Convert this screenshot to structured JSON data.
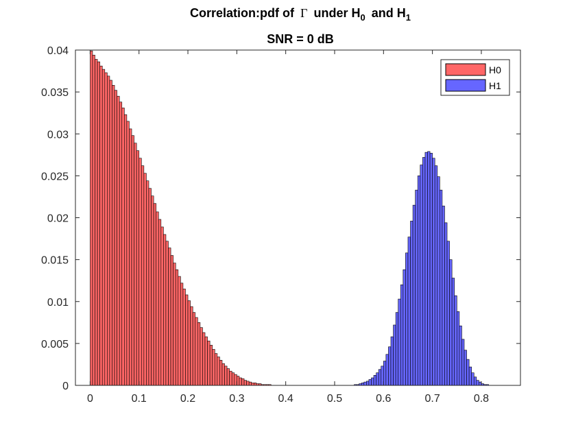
{
  "chart_data": {
    "type": "bar",
    "title": {
      "prefix": "Correlation:pdf of",
      "symbol": "Γ",
      "under": "under H",
      "sub0": "0",
      "and": "and H",
      "sub1": "1"
    },
    "subtitle": "SNR = 0 dB",
    "xlabel": "",
    "ylabel": "",
    "xlim": [
      -0.03,
      0.88
    ],
    "ylim": [
      0,
      0.04
    ],
    "xticks": [
      "0",
      "0.1",
      "0.2",
      "0.3",
      "0.4",
      "0.5",
      "0.6",
      "0.7",
      "0.8"
    ],
    "yticks": [
      "0",
      "0.005",
      "0.01",
      "0.015",
      "0.02",
      "0.025",
      "0.03",
      "0.035",
      "0.04"
    ],
    "grid": false,
    "legend_position": "top-right",
    "bin_width": 0.005,
    "series": [
      {
        "name": "H0",
        "color": "#ff6666",
        "x_start": 0.0,
        "values": [
          0.0399,
          0.0394,
          0.0389,
          0.0386,
          0.0381,
          0.0377,
          0.0373,
          0.0369,
          0.0364,
          0.0358,
          0.0352,
          0.0345,
          0.0338,
          0.0331,
          0.0323,
          0.0315,
          0.0306,
          0.0298,
          0.0289,
          0.028,
          0.0271,
          0.0262,
          0.0253,
          0.0244,
          0.0235,
          0.0226,
          0.0217,
          0.0207,
          0.0198,
          0.0189,
          0.018,
          0.0172,
          0.0164,
          0.0155,
          0.0146,
          0.0138,
          0.013,
          0.0122,
          0.0115,
          0.0108,
          0.0101,
          0.0094,
          0.0087,
          0.0081,
          0.0075,
          0.0069,
          0.0063,
          0.0058,
          0.0053,
          0.0048,
          0.0043,
          0.0038,
          0.0034,
          0.003,
          0.0026,
          0.0023,
          0.002,
          0.0017,
          0.0015,
          0.0013,
          0.0011,
          0.0009,
          0.0008,
          0.0006,
          0.0005,
          0.0004,
          0.0003,
          0.0003,
          0.0002,
          0.0002,
          0.0001,
          0.0001,
          0.0001,
          0.0001,
          0.0,
          0.0,
          0.0,
          0.0,
          0.0,
          0.0
        ]
      },
      {
        "name": "H1",
        "color": "#6666ff",
        "x_start": 0.54,
        "values": [
          0.0001,
          0.0001,
          0.0002,
          0.0003,
          0.0004,
          0.0005,
          0.0007,
          0.0009,
          0.0012,
          0.0015,
          0.0019,
          0.0023,
          0.0029,
          0.0037,
          0.0046,
          0.0058,
          0.0072,
          0.0087,
          0.0103,
          0.012,
          0.0138,
          0.0158,
          0.0177,
          0.0196,
          0.0215,
          0.0233,
          0.025,
          0.0263,
          0.0272,
          0.0278,
          0.0279,
          0.0277,
          0.0271,
          0.0262,
          0.0249,
          0.0233,
          0.0214,
          0.0194,
          0.0172,
          0.015,
          0.0128,
          0.0107,
          0.0088,
          0.0071,
          0.0055,
          0.0042,
          0.0031,
          0.0022,
          0.0015,
          0.001,
          0.0006,
          0.0004,
          0.0002,
          0.0001,
          0.0001,
          0.0,
          0.0,
          0.0,
          0.0,
          0.0
        ]
      }
    ]
  }
}
